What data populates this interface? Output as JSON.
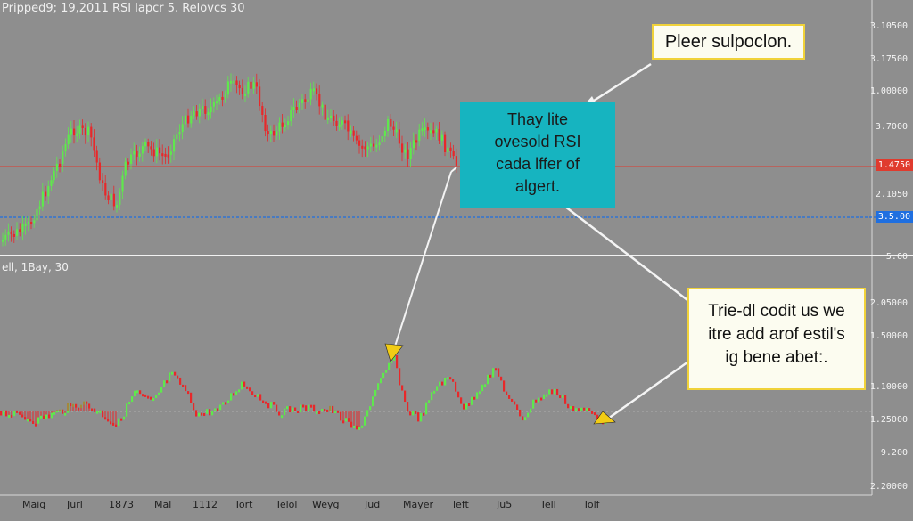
{
  "header": {
    "title": "Pripped9; 19,2011 RSI lapcr 5. Relovcs 30"
  },
  "subpanel": {
    "title": "ell, 1Bay, 30"
  },
  "price_axis": {
    "labels": [
      "3.10500",
      "3.17500",
      "1.00000",
      "3.7000",
      "1.4750",
      "2.1050",
      "3.5.00",
      "5.60",
      "2.05000",
      "1.50000",
      "1.10000",
      "1.25000",
      "9.200",
      "2.20000"
    ]
  },
  "time_axis": {
    "labels": [
      "Maig",
      "Jurl",
      "1873",
      "Mal",
      "1112",
      "Tort",
      "Telol",
      "Weyg",
      "Jud",
      "Mayer",
      "left",
      "Ju5",
      "Tell",
      "Tolf"
    ]
  },
  "callouts": {
    "top": "Pleer sulpoclon.",
    "middle": [
      "Thay lite",
      "ovesold RSI",
      "cada lffer of",
      "algert."
    ],
    "bottom": [
      "Trie-dl codit us we",
      "itre add arof estil's",
      "ig bene abet:."
    ]
  },
  "colors": {
    "background": "#8e8e8e",
    "bull": "#5fe84d",
    "bear": "#e8282a",
    "red_line": "#e03b2e",
    "blue_line": "#1f6fe0",
    "callout_teal": "#16b4c0",
    "callout_border": "#f0d23a",
    "arrow_head": "#f2cc14"
  }
}
